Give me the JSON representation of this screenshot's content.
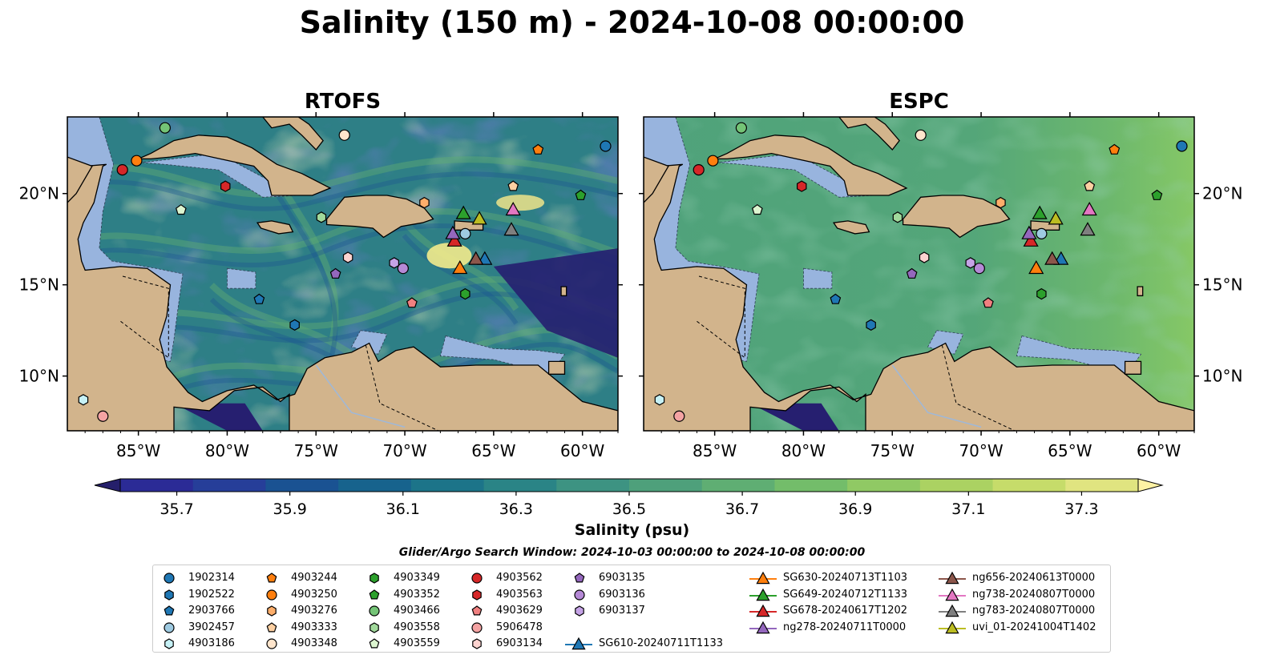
{
  "title": "Salinity (150 m) - 2024-10-08 00:00:00",
  "panels": [
    {
      "title": "RTOFS"
    },
    {
      "title": "ESPC"
    }
  ],
  "chart_data": {
    "type": "heatmap",
    "title": "Salinity (150 m) - 2024-10-08 00:00:00",
    "panels": [
      "RTOFS",
      "ESPC"
    ],
    "x_ticks": [
      "85°W",
      "80°W",
      "75°W",
      "70°W",
      "65°W",
      "60°W"
    ],
    "y_ticks": [
      "10°N",
      "15°N",
      "20°N"
    ],
    "x_tick_values": [
      -85,
      -80,
      -75,
      -70,
      -65,
      -60
    ],
    "y_tick_values": [
      10,
      15,
      20
    ],
    "xlim": [
      -89,
      -58
    ],
    "ylim": [
      7,
      24.2
    ],
    "colorbar": {
      "label": "Salinity (psu)",
      "min": 35.6,
      "max": 37.4,
      "tick_labels": [
        "35.7",
        "35.9",
        "36.1",
        "36.3",
        "36.5",
        "36.7",
        "36.9",
        "37.1",
        "37.3"
      ],
      "tick_values": [
        35.7,
        35.9,
        36.1,
        36.3,
        36.5,
        36.7,
        36.9,
        37.1,
        37.3
      ],
      "colors": [
        "#251f6b",
        "#2b2b96",
        "#263e99",
        "#1a5292",
        "#17638d",
        "#1c7489",
        "#2a8486",
        "#3d9382",
        "#4ea07b",
        "#5fae73",
        "#73bd6a",
        "#90c964",
        "#abd262",
        "#c6dc6a",
        "#e0e480",
        "#fdf2a4"
      ]
    },
    "search_window": "Glider/Argo Search Window: 2024-10-03 00:00:00 to 2024-10-08 00:00:00",
    "land_color": "#d2b48c",
    "shelf_color": "#98b4de",
    "platforms": [
      {
        "id": "1902314",
        "type": "argo",
        "marker": "circle",
        "color": "#1f77b4",
        "lon": -58.7,
        "lat": 22.6
      },
      {
        "id": "1902522",
        "type": "argo",
        "marker": "hexagon",
        "color": "#1f77b4",
        "lon": -76.2,
        "lat": 12.8
      },
      {
        "id": "2903766",
        "type": "argo",
        "marker": "pentagon",
        "color": "#1f77b4",
        "lon": -78.2,
        "lat": 14.2
      },
      {
        "id": "3902457",
        "type": "argo",
        "marker": "circle",
        "color": "#9ecae1",
        "lon": -66.6,
        "lat": 17.8
      },
      {
        "id": "4903186",
        "type": "argo",
        "marker": "hexagon",
        "color": "#c6f1f6",
        "lon": -88.1,
        "lat": 8.7
      },
      {
        "id": "4903244",
        "type": "argo",
        "marker": "pentagon",
        "color": "#ff7f0e",
        "lon": -62.5,
        "lat": 22.4
      },
      {
        "id": "4903250",
        "type": "argo",
        "marker": "circle",
        "color": "#ff7f0e",
        "lon": -85.1,
        "lat": 21.8
      },
      {
        "id": "4903276",
        "type": "argo",
        "marker": "hexagon",
        "color": "#fdae6b",
        "lon": -68.9,
        "lat": 19.5
      },
      {
        "id": "4903333",
        "type": "argo",
        "marker": "pentagon",
        "color": "#fdd0a2",
        "lon": -63.9,
        "lat": 20.4
      },
      {
        "id": "4903348",
        "type": "argo",
        "marker": "circle",
        "color": "#ffe5cc",
        "lon": -73.4,
        "lat": 23.2
      },
      {
        "id": "4903349",
        "type": "argo",
        "marker": "hexagon",
        "color": "#2ca02c",
        "lon": -66.6,
        "lat": 14.5
      },
      {
        "id": "4903352",
        "type": "argo",
        "marker": "pentagon",
        "color": "#2ca02c",
        "lon": -60.1,
        "lat": 19.9
      },
      {
        "id": "4903466",
        "type": "argo",
        "marker": "circle",
        "color": "#74c476",
        "lon": -83.5,
        "lat": 23.6
      },
      {
        "id": "4903558",
        "type": "argo",
        "marker": "hexagon",
        "color": "#a1d99b",
        "lon": -74.7,
        "lat": 18.7
      },
      {
        "id": "4903559",
        "type": "argo",
        "marker": "pentagon",
        "color": "#dcf5d0",
        "lon": -82.6,
        "lat": 19.1
      },
      {
        "id": "4903562",
        "type": "argo",
        "marker": "circle",
        "color": "#d62728",
        "lon": -85.9,
        "lat": 21.3
      },
      {
        "id": "4903563",
        "type": "argo",
        "marker": "hexagon",
        "color": "#d62728",
        "lon": -80.1,
        "lat": 20.4
      },
      {
        "id": "4903629",
        "type": "argo",
        "marker": "pentagon",
        "color": "#f08080",
        "lon": -69.6,
        "lat": 14.0
      },
      {
        "id": "5906478",
        "type": "argo",
        "marker": "circle",
        "color": "#f4a3a3",
        "lon": -87.0,
        "lat": 7.8
      },
      {
        "id": "6903134",
        "type": "argo",
        "marker": "hexagon",
        "color": "#fdd3d0",
        "lon": -73.2,
        "lat": 16.5
      },
      {
        "id": "6903135",
        "type": "argo",
        "marker": "pentagon",
        "color": "#9467bd",
        "lon": -73.9,
        "lat": 15.6
      },
      {
        "id": "6903136",
        "type": "argo",
        "marker": "circle",
        "color": "#b589d6",
        "lon": -70.1,
        "lat": 15.9
      },
      {
        "id": "6903137",
        "type": "argo",
        "marker": "hexagon",
        "color": "#c5a3e6",
        "lon": -70.6,
        "lat": 16.2
      },
      {
        "id": "SG610-20240711T1133",
        "type": "glider",
        "marker": "triangle",
        "color": "#1f77b4",
        "lon": -65.5,
        "lat": 16.4
      },
      {
        "id": "SG630-20240713T1103",
        "type": "glider",
        "marker": "triangle",
        "color": "#ff7f0e",
        "lon": -66.9,
        "lat": 15.9
      },
      {
        "id": "SG649-20240712T1133",
        "type": "glider",
        "marker": "triangle",
        "color": "#2ca02c",
        "lon": -66.7,
        "lat": 18.9
      },
      {
        "id": "SG678-20240617T1202",
        "type": "glider",
        "marker": "triangle",
        "color": "#d62728",
        "lon": -67.2,
        "lat": 17.4
      },
      {
        "id": "ng278-20240711T0000",
        "type": "glider",
        "marker": "triangle",
        "color": "#9467bd",
        "lon": -67.3,
        "lat": 17.8
      },
      {
        "id": "ng656-20240613T0000",
        "type": "glider",
        "marker": "triangle",
        "color": "#8c564b",
        "lon": -66.0,
        "lat": 16.4
      },
      {
        "id": "ng738-20240807T0000",
        "type": "glider",
        "marker": "triangle",
        "color": "#e377c2",
        "lon": -63.9,
        "lat": 19.1
      },
      {
        "id": "ng783-20240807T0000",
        "type": "glider",
        "marker": "triangle",
        "color": "#7f7f7f",
        "lon": -64.0,
        "lat": 18.0
      },
      {
        "id": "uvi_01-20241004T1402",
        "type": "glider",
        "marker": "triangle",
        "color": "#bcbd22",
        "lon": -65.8,
        "lat": 18.6
      }
    ]
  }
}
